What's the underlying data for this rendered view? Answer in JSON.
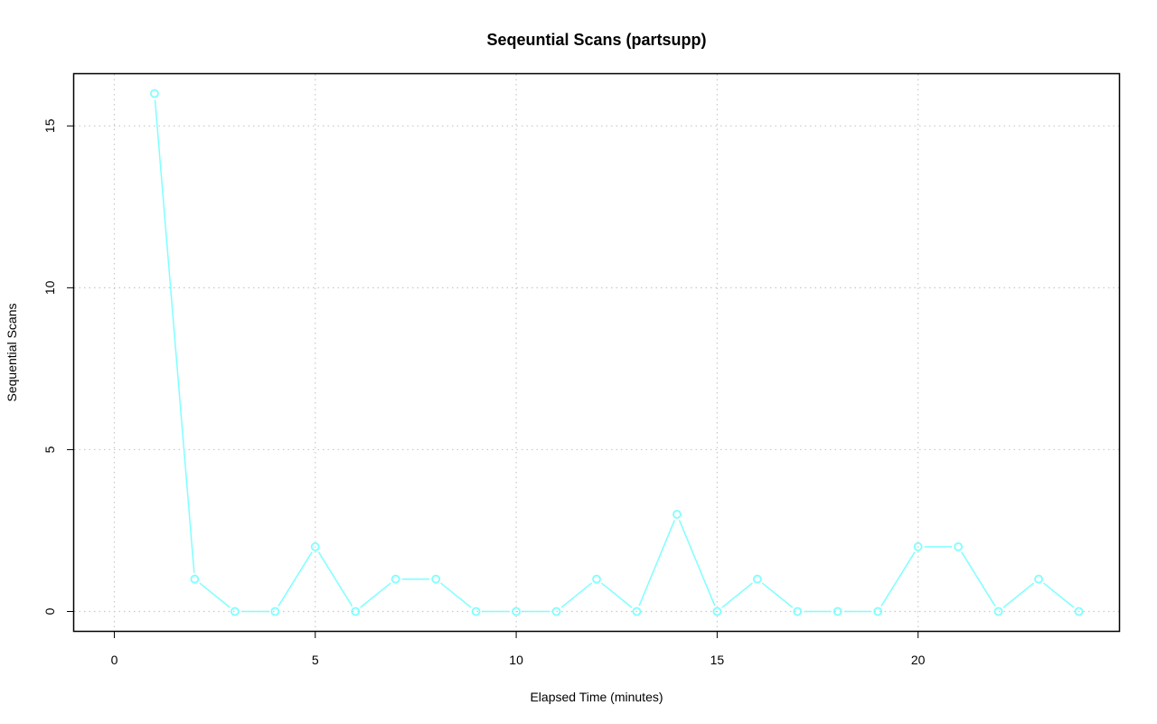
{
  "chart_data": {
    "type": "line",
    "title": "Seqeuntial Scans (partsupp)",
    "xlabel": "Elapsed Time (minutes)",
    "ylabel": "Sequential Scans",
    "xlim": [
      -1,
      25
    ],
    "ylim": [
      -0.6,
      16.6
    ],
    "x_ticks": [
      0,
      5,
      10,
      15,
      20
    ],
    "y_ticks": [
      0,
      5,
      10,
      15
    ],
    "grid": true,
    "series": [
      {
        "color": "#7fffff",
        "marker": "open-circle",
        "x": [
          1,
          2,
          3,
          4,
          5,
          6,
          7,
          8,
          9,
          10,
          11,
          12,
          13,
          14,
          15,
          16,
          17,
          18,
          19,
          20,
          21,
          22,
          23,
          24
        ],
        "y": [
          16,
          1,
          0,
          0,
          2,
          0,
          1,
          1,
          0,
          0,
          0,
          1,
          0,
          3,
          0,
          1,
          0,
          0,
          0,
          2,
          2,
          0,
          1,
          0
        ]
      }
    ]
  }
}
